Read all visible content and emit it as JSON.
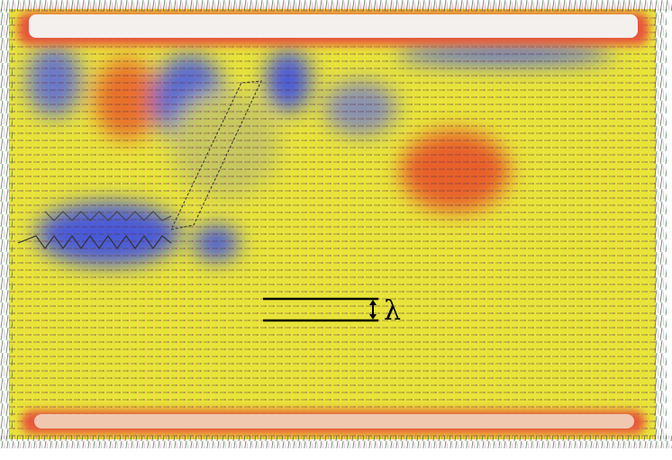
{
  "figure": {
    "scale_label": "λ"
  }
}
